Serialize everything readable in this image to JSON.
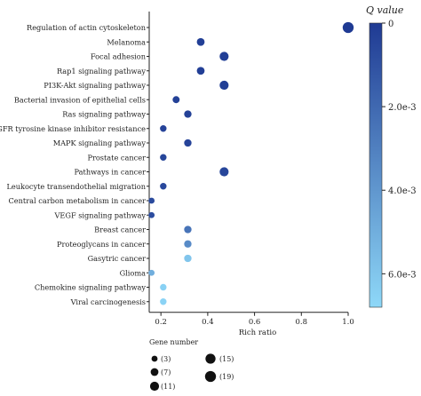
{
  "chart_data": {
    "type": "scatter",
    "xlabel": "Rich ratio",
    "xlim": [
      0.15,
      1.0
    ],
    "xticks": [
      {
        "value": 0.2,
        "label": "0.2"
      },
      {
        "value": 0.4,
        "label": "0.4"
      },
      {
        "value": 0.6,
        "label": "0.6"
      },
      {
        "value": 0.8,
        "label": "0.8"
      },
      {
        "value": 1.0,
        "label": "1.0"
      }
    ],
    "points": [
      {
        "term": "Regulation of actin cytoskeleton",
        "rich_ratio": 1.0,
        "q_value": 0.0,
        "gene_number": 19
      },
      {
        "term": "Melanoma",
        "rich_ratio": 0.37,
        "q_value": 0.0002,
        "gene_number": 7
      },
      {
        "term": "Focal adhesion",
        "rich_ratio": 0.47,
        "q_value": 0.0002,
        "gene_number": 11
      },
      {
        "term": "Rap1 signaling pathway",
        "rich_ratio": 0.37,
        "q_value": 0.0002,
        "gene_number": 7
      },
      {
        "term": "PI3K-Akt signaling pathway",
        "rich_ratio": 0.47,
        "q_value": 0.0002,
        "gene_number": 11
      },
      {
        "term": "Bacterial invasion of epithelial cells",
        "rich_ratio": 0.265,
        "q_value": 0.0003,
        "gene_number": 5
      },
      {
        "term": "Ras signaling pathway",
        "rich_ratio": 0.315,
        "q_value": 0.0003,
        "gene_number": 6
      },
      {
        "term": "EGFR tyrosine kinase inhibitor resistance",
        "rich_ratio": 0.21,
        "q_value": 0.0004,
        "gene_number": 4
      },
      {
        "term": "MAPK signaling pathway",
        "rich_ratio": 0.315,
        "q_value": 0.0004,
        "gene_number": 6
      },
      {
        "term": "Prostate cancer",
        "rich_ratio": 0.21,
        "q_value": 0.0005,
        "gene_number": 4
      },
      {
        "term": "Pathways in cancer",
        "rich_ratio": 0.47,
        "q_value": 0.0005,
        "gene_number": 11
      },
      {
        "term": "Leukocyte transendothelial migration",
        "rich_ratio": 0.21,
        "q_value": 0.0006,
        "gene_number": 4
      },
      {
        "term": "Central carbon metabolism in cancer",
        "rich_ratio": 0.16,
        "q_value": 0.0007,
        "gene_number": 3
      },
      {
        "term": "VEGF signaling pathway",
        "rich_ratio": 0.16,
        "q_value": 0.0008,
        "gene_number": 3
      },
      {
        "term": "Breast cancer",
        "rich_ratio": 0.315,
        "q_value": 0.0025,
        "gene_number": 6
      },
      {
        "term": "Proteoglycans in cancer",
        "rich_ratio": 0.315,
        "q_value": 0.0035,
        "gene_number": 6
      },
      {
        "term": "Gasytric cancer",
        "rich_ratio": 0.315,
        "q_value": 0.006,
        "gene_number": 6
      },
      {
        "term": "Glioma",
        "rich_ratio": 0.16,
        "q_value": 0.005,
        "gene_number": 3
      },
      {
        "term": "Chemokine signaling pathway",
        "rich_ratio": 0.21,
        "q_value": 0.0065,
        "gene_number": 4
      },
      {
        "term": "Viral carcinogenesis",
        "rich_ratio": 0.21,
        "q_value": 0.0066,
        "gene_number": 4
      }
    ],
    "colorbar": {
      "title": "Q value",
      "range": [
        0,
        0.0068
      ],
      "color_low": "#1f3a93",
      "color_high": "#8ed8f8",
      "ticks": [
        {
          "value": 0,
          "label": "0"
        },
        {
          "value": 0.002,
          "label": "2.0e-3"
        },
        {
          "value": 0.004,
          "label": "4.0e-3"
        },
        {
          "value": 0.006,
          "label": "6.0e-3"
        }
      ]
    },
    "size_legend": {
      "title": "Gene number",
      "entries": [
        {
          "value": 3,
          "label": "(3)"
        },
        {
          "value": 7,
          "label": "(7)"
        },
        {
          "value": 11,
          "label": "(11)"
        },
        {
          "value": 15,
          "label": "(15)"
        },
        {
          "value": 19,
          "label": "(19)"
        }
      ]
    }
  }
}
